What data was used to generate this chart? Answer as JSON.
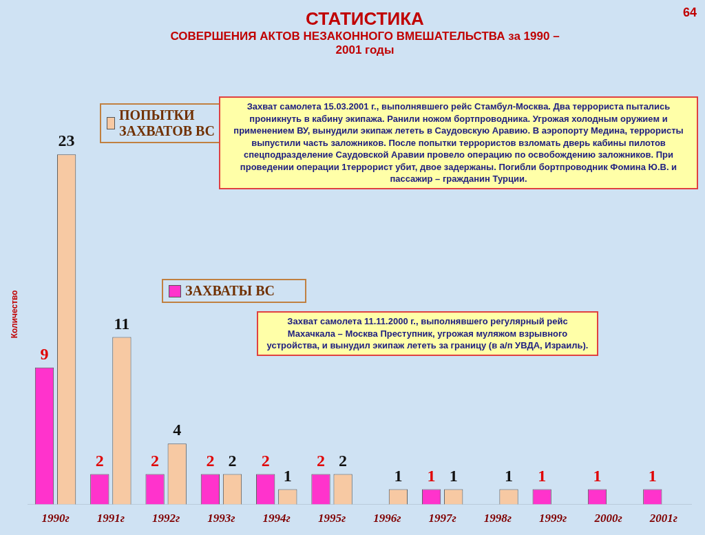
{
  "chart_data": {
    "type": "bar",
    "title": "СТАТИСТИКА",
    "subtitle": "СОВЕРШЕНИЯ АКТОВ НЕЗАКОННОГО ВМЕШАТЕЛЬСТВА за 1990 – 2001 годы",
    "ylabel": "Количество",
    "categories": [
      "1990г",
      "1991г",
      "1992г",
      "1993г",
      "1994г",
      "1995г",
      "1996г",
      "1997г",
      "1998г",
      "1999г",
      "2000г",
      "2001г"
    ],
    "series": [
      {
        "name": "ЗАХВАТЫ ВС",
        "color": "#ff33cc",
        "values": [
          9,
          2,
          2,
          2,
          2,
          2,
          0,
          1,
          0,
          1,
          1,
          1
        ],
        "value_labels": [
          "9",
          "2",
          "2",
          "2",
          "2",
          "2",
          null,
          "1",
          null,
          "1",
          "1",
          "1"
        ]
      },
      {
        "name": "ПОПЫТКИ ЗАХВАТОВ ВС",
        "color": "#f7c9a3",
        "values": [
          23,
          11,
          4,
          2,
          1,
          2,
          1,
          1,
          1,
          0,
          0,
          0
        ],
        "value_labels": [
          "23",
          "11",
          "4",
          "2",
          "1",
          "2",
          "1",
          "1",
          "1",
          null,
          null,
          null
        ]
      }
    ],
    "legend": "top left",
    "grid": false,
    "annotations": [
      "64",
      "Захват самолета 15.03.2001 г., выполнявшего рейс Стамбул-Москва. Два террориста пытались проникнуть в кабину экипажа. Ранили ножом бортпроводника. Угрожая холодным оружием и применением ВУ, вынудили экипаж лететь в Саудовскую Аравию. В аэропорту Медина, террористы выпустили часть заложников. После попытки террористов взломать дверь кабины пилотов спецподразделение Саудовской Аравии провело операцию по освобождению заложников. При проведении операции 1террорист убит, двое задержаны. Погибли бортпроводник Фомина Ю.В. и пассажир – гражданин Турции.",
      "Захват самолета 11.11.2000 г., выполнявшего регулярный рейс Махачкала – Москва Преступник, угрожая муляжом взрывного устройства, и вынудил экипаж лететь за границу (в а/п УВДА, Израиль)."
    ]
  }
}
